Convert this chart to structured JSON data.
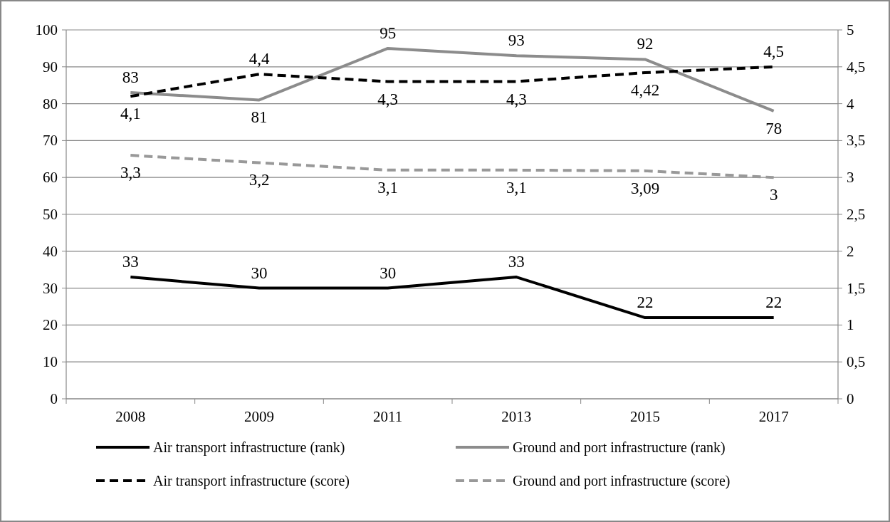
{
  "chart_data": {
    "type": "line",
    "categories": [
      "2008",
      "2009",
      "2011",
      "2013",
      "2015",
      "2017"
    ],
    "ylim": [
      0,
      100
    ],
    "yticks": [
      0,
      10,
      20,
      30,
      40,
      50,
      60,
      70,
      80,
      90,
      100
    ],
    "y2lim": [
      0,
      5
    ],
    "y2ticks": [
      0,
      {
        "value": 0.5,
        "label": "0,5"
      },
      1,
      {
        "value": 1.5,
        "label": "1,5"
      },
      2,
      {
        "value": 2.5,
        "label": "2,5"
      },
      3,
      {
        "value": 3.5,
        "label": "3,5"
      },
      4,
      {
        "value": 4.5,
        "label": "4,5"
      },
      5
    ],
    "grid": "y",
    "legend": "bottom",
    "marker": "none",
    "series": [
      {
        "name": "Air transport infrastructure (rank)",
        "color": "#000000",
        "line_style": "solid",
        "values": [
          33,
          30,
          30,
          33,
          22,
          22
        ],
        "value_labels": [
          "33",
          "30",
          "30",
          "33",
          "22",
          "22"
        ]
      },
      {
        "name": "Ground and port infrastructure (rank)",
        "color": "#8c8c8c",
        "line_style": "solid",
        "values": [
          83,
          81,
          95,
          93,
          92,
          78
        ],
        "value_labels": [
          "83",
          "81",
          "95",
          "93",
          "92",
          "78"
        ]
      },
      {
        "name": "Air transport infrastructure (score)",
        "color": "#000000",
        "line_style": "dashed",
        "axis": "y2",
        "values": [
          4.1,
          4.4,
          4.3,
          4.3,
          4.42,
          4.5
        ],
        "value_labels": [
          "4,1",
          "4,4",
          "4,3",
          "4,3",
          "4,42",
          "4,5"
        ]
      },
      {
        "name": "Ground and port infrastructure (score)",
        "color": "#999999",
        "line_style": "dashed",
        "axis": "y2",
        "values": [
          3.3,
          3.2,
          3.1,
          3.1,
          3.09,
          3
        ],
        "value_labels": [
          "3,3",
          "3,2",
          "3,1",
          "3,1",
          "3,09",
          "3"
        ]
      }
    ]
  }
}
